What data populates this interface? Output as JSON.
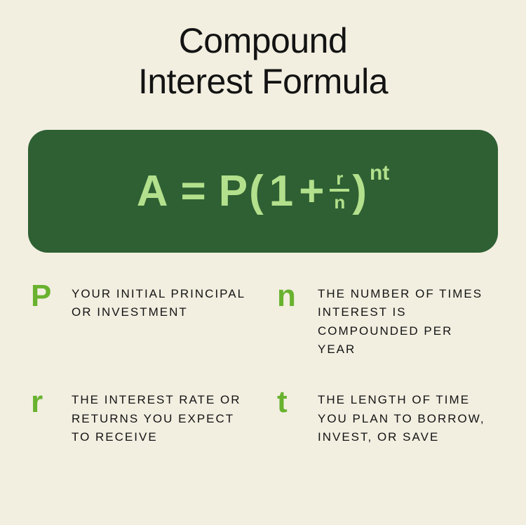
{
  "title_line1": "Compound",
  "title_line2": "Interest Formula",
  "formula": {
    "A": "A",
    "eq": "=",
    "P": "P",
    "open": "(",
    "one": "1",
    "plus": "+",
    "frac_num": "r",
    "frac_den": "n",
    "close": ")",
    "sup": "nt",
    "box_bg": "#2e6033",
    "text_color": "#b3e08c",
    "border_radius": 28,
    "big_fontsize": 62,
    "frac_fontsize": 26,
    "sup_fontsize": 30
  },
  "legend": {
    "symbol_color": "#69b22f",
    "text_color": "#131313",
    "items": [
      {
        "symbol": "P",
        "desc": "Your initial principal or investment"
      },
      {
        "symbol": "n",
        "desc": "The number of times interest is compounded per year"
      },
      {
        "symbol": "r",
        "desc": "The interest rate or returns you expect to receive"
      },
      {
        "symbol": "t",
        "desc": "The length of time you plan to borrow, invest, or save"
      }
    ]
  },
  "colors": {
    "background": "#f2efe1",
    "title": "#131313"
  },
  "typography": {
    "title_fontsize": 50,
    "desc_fontsize": 17,
    "symbol_fontsize": 44
  }
}
